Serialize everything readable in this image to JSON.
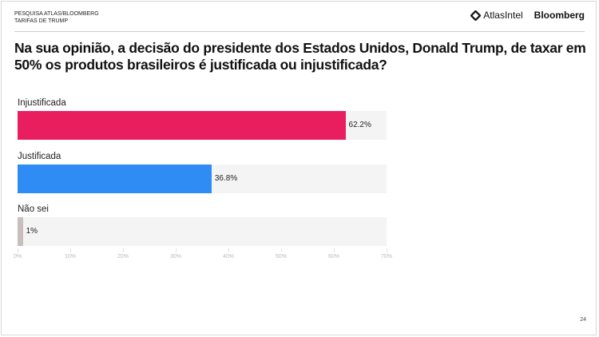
{
  "header": {
    "line1": "PESQUISA ATLAS/BLOOMBERG",
    "line2": "TARIFAS DE TRUMP",
    "logo_atlas": "AtlasIntel",
    "logo_bloomberg": "Bloomberg"
  },
  "page_number": "24",
  "chart_data": {
    "type": "bar",
    "orientation": "horizontal",
    "title": "Na sua opinião, a decisão do presidente dos Estados Unidos, Donald Trump, de taxar em 50% os produtos brasileiros é justificada ou injustificada?",
    "categories": [
      "Injustificada",
      "Justificada",
      "Não sei"
    ],
    "values": [
      62.2,
      36.8,
      1
    ],
    "value_labels": [
      "62.2%",
      "36.8%",
      "1%"
    ],
    "colors": [
      "#e91e5f",
      "#2f8cf5",
      "#c9bdbd"
    ],
    "xlim": [
      0,
      70
    ],
    "ticks": [
      "0%",
      "10%",
      "20%",
      "30%",
      "40%",
      "50%",
      "60%",
      "70%"
    ]
  }
}
